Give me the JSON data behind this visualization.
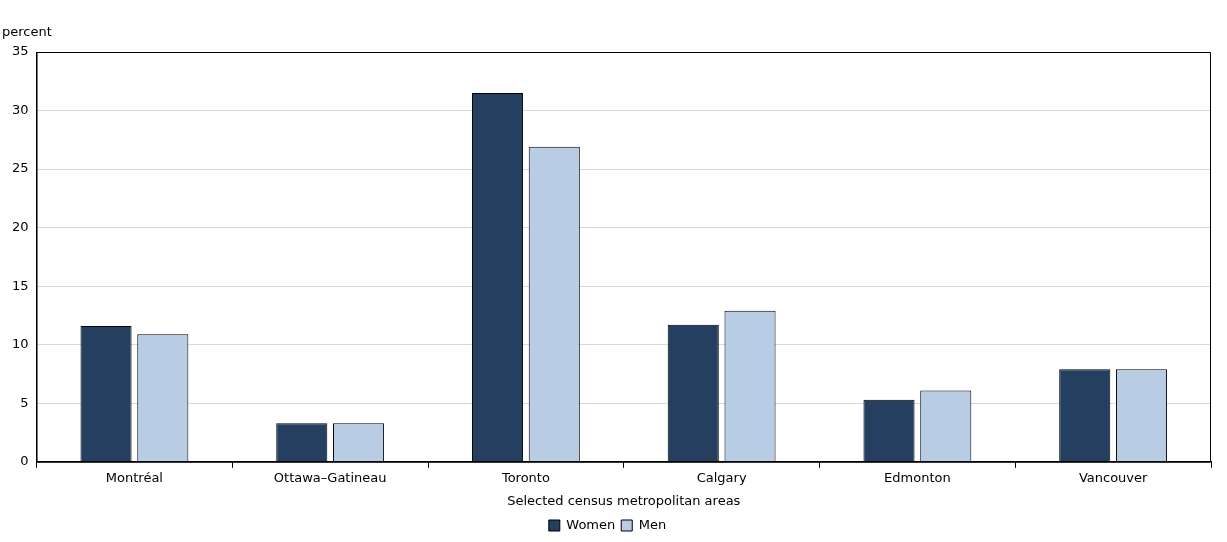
{
  "chart_data": {
    "type": "bar",
    "ylabel": "percent",
    "xlabel": "Selected census metropolitan areas",
    "categories": [
      "Montréal",
      "Ottawa–Gatineau",
      "Toronto",
      "Calgary",
      "Edmonton",
      "Vancouver"
    ],
    "series": [
      {
        "name": "Women",
        "color": "#253f60",
        "values": [
          11.6,
          3.3,
          31.5,
          11.7,
          5.3,
          7.9
        ]
      },
      {
        "name": "Men",
        "color": "#b8cce4",
        "values": [
          10.9,
          3.3,
          26.9,
          12.9,
          6.1,
          7.9
        ]
      }
    ],
    "ylim": [
      0,
      35
    ],
    "yticks": [
      0,
      5,
      10,
      15,
      20,
      25,
      30,
      35
    ],
    "grid": "y",
    "legend": "bottom"
  }
}
